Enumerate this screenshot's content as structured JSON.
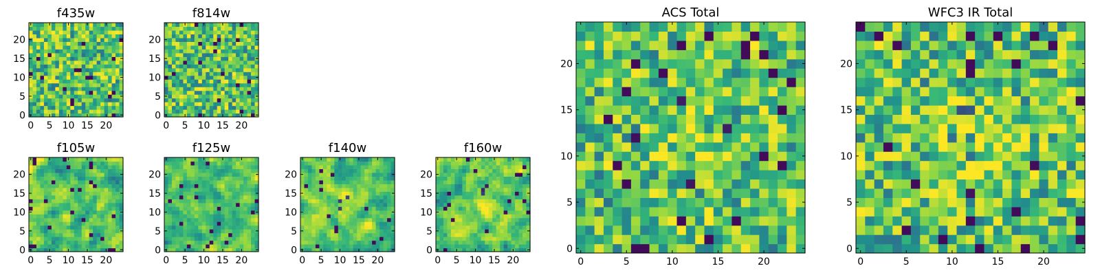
{
  "chart_data": [
    {
      "type": "heatmap",
      "title": "f435w",
      "grid_size": 25,
      "xticks": [
        "0",
        "5",
        "10",
        "15",
        "20"
      ],
      "yticks": [
        "0",
        "5",
        "10",
        "15",
        "20"
      ],
      "xlim": [
        -0.5,
        24.5
      ],
      "ylim": [
        -0.5,
        24.5
      ],
      "colormap": "viridis",
      "color_range": [
        0,
        1
      ],
      "pattern_seed": 11,
      "pattern_smooth": 0,
      "center_peak": 0
    },
    {
      "type": "heatmap",
      "title": "f814w",
      "grid_size": 25,
      "xticks": [
        "0",
        "5",
        "10",
        "15",
        "20"
      ],
      "yticks": [
        "0",
        "5",
        "10",
        "15",
        "20"
      ],
      "xlim": [
        -0.5,
        24.5
      ],
      "ylim": [
        -0.5,
        24.5
      ],
      "colormap": "viridis",
      "color_range": [
        0,
        1
      ],
      "pattern_seed": 23,
      "pattern_smooth": 0,
      "center_peak": 0
    },
    {
      "type": "heatmap",
      "title": "f105w",
      "grid_size": 25,
      "xticks": [
        "0",
        "5",
        "10",
        "15",
        "20"
      ],
      "yticks": [
        "0",
        "5",
        "10",
        "15",
        "20"
      ],
      "xlim": [
        -0.5,
        24.5
      ],
      "ylim": [
        -0.5,
        24.5
      ],
      "colormap": "viridis",
      "color_range": [
        0,
        1
      ],
      "pattern_seed": 37,
      "pattern_smooth": 1,
      "center_peak": 0
    },
    {
      "type": "heatmap",
      "title": "f125w",
      "grid_size": 25,
      "xticks": [
        "0",
        "5",
        "10",
        "15",
        "20"
      ],
      "yticks": [
        "0",
        "5",
        "10",
        "15",
        "20"
      ],
      "xlim": [
        -0.5,
        24.5
      ],
      "ylim": [
        -0.5,
        24.5
      ],
      "colormap": "viridis",
      "color_range": [
        0,
        1
      ],
      "pattern_seed": 41,
      "pattern_smooth": 1,
      "center_peak": 0
    },
    {
      "type": "heatmap",
      "title": "f140w",
      "grid_size": 25,
      "xticks": [
        "0",
        "5",
        "10",
        "15",
        "20"
      ],
      "yticks": [
        "0",
        "5",
        "10",
        "15",
        "20"
      ],
      "xlim": [
        -0.5,
        24.5
      ],
      "ylim": [
        -0.5,
        24.5
      ],
      "colormap": "viridis",
      "color_range": [
        0,
        1
      ],
      "pattern_seed": 53,
      "pattern_smooth": 1,
      "center_peak": 0.15
    },
    {
      "type": "heatmap",
      "title": "f160w",
      "grid_size": 25,
      "xticks": [
        "0",
        "5",
        "10",
        "15",
        "20"
      ],
      "yticks": [
        "0",
        "5",
        "10",
        "15",
        "20"
      ],
      "xlim": [
        -0.5,
        24.5
      ],
      "ylim": [
        -0.5,
        24.5
      ],
      "colormap": "viridis",
      "color_range": [
        0,
        1
      ],
      "pattern_seed": 67,
      "pattern_smooth": 1,
      "center_peak": 0.2
    },
    {
      "type": "heatmap",
      "title": "ACS Total",
      "grid_size": 25,
      "xticks": [
        "0",
        "5",
        "10",
        "15",
        "20"
      ],
      "yticks": [
        "0",
        "5",
        "10",
        "15",
        "20"
      ],
      "xlim": [
        -0.5,
        24.5
      ],
      "ylim": [
        -0.5,
        24.5
      ],
      "colormap": "viridis",
      "color_range": [
        0,
        1
      ],
      "pattern_seed": 79,
      "pattern_smooth": 0,
      "center_peak": 0.15
    },
    {
      "type": "heatmap",
      "title": "WFC3 IR Total",
      "grid_size": 25,
      "xticks": [
        "0",
        "5",
        "10",
        "15",
        "20"
      ],
      "yticks": [
        "0",
        "5",
        "10",
        "15",
        "20"
      ],
      "xlim": [
        -0.5,
        24.5
      ],
      "ylim": [
        -0.5,
        24.5
      ],
      "colormap": "viridis",
      "color_range": [
        0,
        1
      ],
      "pattern_seed": 97,
      "pattern_smooth": 0,
      "center_peak": 0.3
    }
  ],
  "colors": {
    "viridis_stops": [
      "#440154",
      "#31688e",
      "#21918c",
      "#35b779",
      "#90d743",
      "#fde725"
    ],
    "axis_frame": "#000000",
    "background": "#ffffff"
  }
}
